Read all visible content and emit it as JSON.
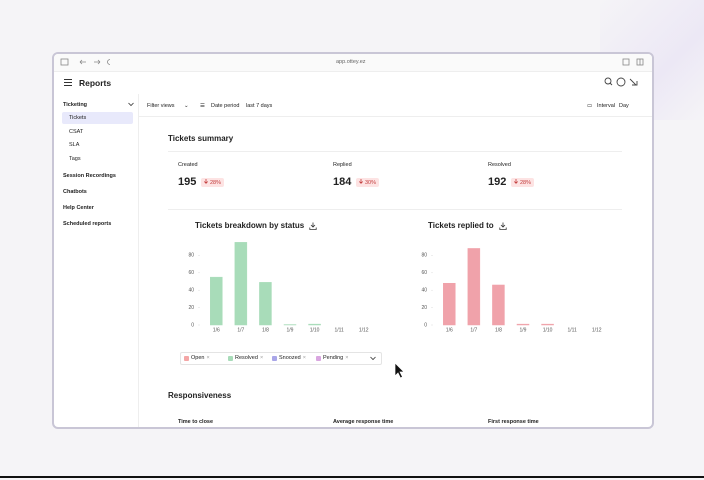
{
  "browser": {
    "url": "app.ottey.ez"
  },
  "header": {
    "title": "Reports"
  },
  "sidebar": {
    "section": "Ticketing",
    "items": [
      "Tickets",
      "CSAT",
      "SLA",
      "Tags"
    ],
    "links": [
      "Session Recordings",
      "Chatbots",
      "Help Center",
      "Scheduled reports"
    ]
  },
  "toolbar": {
    "filter": "Filter views",
    "date_label": "Date period",
    "date_value": "last 7 days",
    "interval_label": "Interval",
    "interval_value": "Day"
  },
  "summary": {
    "title": "Tickets summary",
    "stats": [
      {
        "label": "Created",
        "value": 195,
        "change": "28%"
      },
      {
        "label": "Replied",
        "value": 184,
        "change": "30%"
      },
      {
        "label": "Resolved",
        "value": 192,
        "change": "28%"
      }
    ]
  },
  "charts": [
    {
      "type": "bar",
      "title": "Tickets breakdown by status",
      "categories": [
        "1/6",
        "1/7",
        "1/8",
        "1/9",
        "1/10",
        "1/11",
        "1/12"
      ],
      "series": [
        {
          "color": "#a8dcb9",
          "values": [
            55,
            95,
            49,
            0.5,
            1,
            0,
            0
          ]
        }
      ],
      "ylim": [
        0,
        100
      ],
      "yticks": [
        0,
        20,
        40,
        60,
        80
      ],
      "legend": [
        {
          "name": "Open",
          "color": "#f4a6a6"
        },
        {
          "name": "Resolved",
          "color": "#a8dcb9"
        },
        {
          "name": "Snoozed",
          "color": "#a9a6e8"
        },
        {
          "name": "Pending",
          "color": "#d9a6e0"
        }
      ]
    },
    {
      "type": "bar",
      "title": "Tickets replied to",
      "categories": [
        "1/6",
        "1/7",
        "1/8",
        "1/9",
        "1/10",
        "1/11",
        "1/12"
      ],
      "series": [
        {
          "color": "#f0a2aa",
          "values": [
            48,
            88,
            46,
            1,
            1,
            0,
            0
          ]
        }
      ],
      "ylim": [
        0,
        100
      ],
      "yticks": [
        0,
        20,
        40,
        60,
        80
      ]
    }
  ],
  "responsiveness": {
    "title": "Responsiveness",
    "metrics": [
      "Time to close",
      "Average response time",
      "First response time"
    ]
  }
}
